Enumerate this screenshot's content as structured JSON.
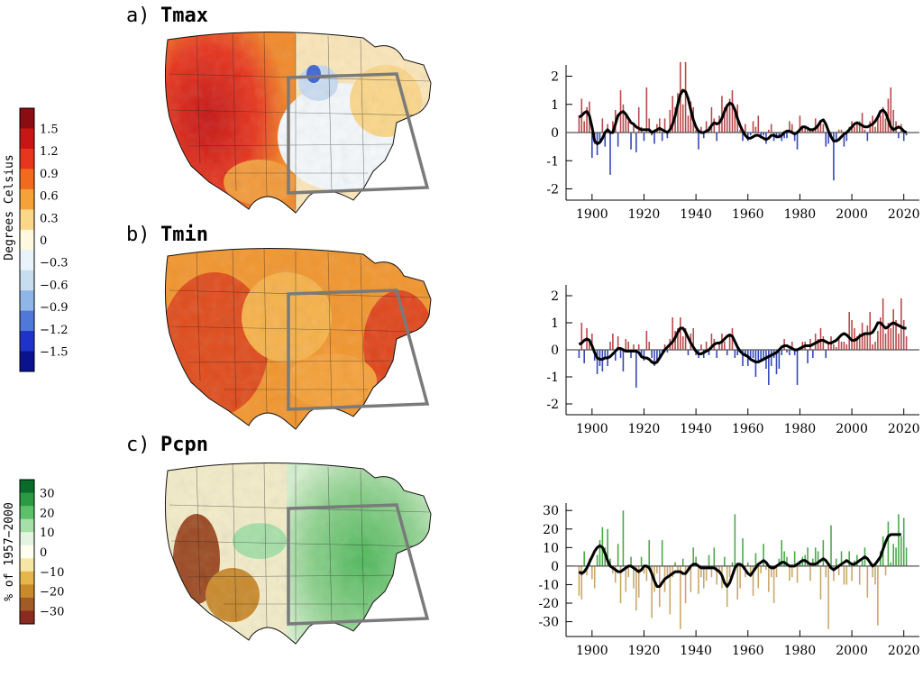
{
  "panels": [
    {
      "letter": "a)",
      "label": "Tmax"
    },
    {
      "letter": "b)",
      "label": "Tmin"
    },
    {
      "letter": "c)",
      "label": "Pcpn"
    }
  ],
  "temp_colorbar": {
    "label": "Degrees Celsius",
    "ticks": [
      "1.5",
      "1.2",
      "0.9",
      "0.6",
      "0.3",
      "0",
      "−0.3",
      "−0.6",
      "−0.9",
      "−1.2",
      "−1.5"
    ],
    "colors": [
      "#8b0c12",
      "#c81616",
      "#e8361e",
      "#f26a1e",
      "#f6a23a",
      "#fbd78a",
      "#fff8e0",
      "#eaf3fa",
      "#c7def0",
      "#8fb6e6",
      "#4f78d8",
      "#1f33c8",
      "#0a1290"
    ]
  },
  "pcpn_colorbar": {
    "label": "% of 1957−2000",
    "ticks": [
      "30",
      "20",
      "10",
      "0",
      "−10",
      "−20",
      "−30"
    ],
    "colors": [
      "#0a6b2a",
      "#2b9a44",
      "#5cc06a",
      "#a6dfa8",
      "#e3f5e0",
      "#fffef0",
      "#f6e6a6",
      "#e6b64a",
      "#c98a2c",
      "#a25a26",
      "#8a2b1f"
    ]
  },
  "chart_data": [
    {
      "type": "bar",
      "title": "Tmax",
      "x": [
        1895,
        1896,
        1897,
        1898,
        1899,
        1900,
        1901,
        1902,
        1903,
        1904,
        1905,
        1906,
        1907,
        1908,
        1909,
        1910,
        1911,
        1912,
        1913,
        1914,
        1915,
        1916,
        1917,
        1918,
        1919,
        1920,
        1921,
        1922,
        1923,
        1924,
        1925,
        1926,
        1927,
        1928,
        1929,
        1930,
        1931,
        1932,
        1933,
        1934,
        1935,
        1936,
        1937,
        1938,
        1939,
        1940,
        1941,
        1942,
        1943,
        1944,
        1945,
        1946,
        1947,
        1948,
        1949,
        1950,
        1951,
        1952,
        1953,
        1954,
        1955,
        1956,
        1957,
        1958,
        1959,
        1960,
        1961,
        1962,
        1963,
        1964,
        1965,
        1966,
        1967,
        1968,
        1969,
        1970,
        1971,
        1972,
        1973,
        1974,
        1975,
        1976,
        1977,
        1978,
        1979,
        1980,
        1981,
        1982,
        1983,
        1984,
        1985,
        1986,
        1987,
        1988,
        1989,
        1990,
        1991,
        1992,
        1993,
        1994,
        1995,
        1996,
        1997,
        1998,
        1999,
        2000,
        2001,
        2002,
        2003,
        2004,
        2005,
        2006,
        2007,
        2008,
        2009,
        2010,
        2011,
        2012,
        2013,
        2014,
        2015,
        2016,
        2017,
        2018,
        2019,
        2020,
        2021
      ],
      "values": [
        0.6,
        1.2,
        0.4,
        0.9,
        1.1,
        -0.9,
        -0.4,
        -0.8,
        -0.3,
        0.5,
        -0.5,
        0.3,
        -1.5,
        0.4,
        0.8,
        -0.5,
        1.5,
        1.0,
        0.6,
        0.4,
        -0.6,
        0.3,
        -0.7,
        0.9,
        0.2,
        -0.3,
        1.6,
        0.5,
        -0.1,
        -0.4,
        0.3,
        0.5,
        -0.3,
        0.5,
        -0.2,
        0.8,
        1.3,
        0.9,
        1.4,
        2.5,
        1.0,
        2.5,
        0.6,
        1.1,
        0.9,
        0.1,
        -0.6,
        0.2,
        -0.2,
        0.4,
        0.2,
        0.9,
        0.5,
        -0.3,
        0.6,
        1.3,
        0.9,
        1.0,
        1.2,
        1.5,
        0.8,
        1.0,
        0.1,
        -0.3,
        0.3,
        -0.3,
        -0.1,
        0.4,
        0.2,
        0.6,
        -0.2,
        -0.1,
        -0.4,
        0.1,
        0.3,
        -0.3,
        -0.2,
        -0.1,
        -0.3,
        -0.2,
        -0.2,
        0.4,
        0.3,
        -0.3,
        -0.6,
        0.6,
        0.2,
        0.2,
        0.2,
        0.1,
        0.1,
        0.5,
        0.2,
        0.4,
        0.3,
        -0.5,
        -0.4,
        -0.2,
        -1.7,
        -0.3,
        0.1,
        0.1,
        -0.5,
        -0.3,
        0.2,
        0.4,
        0.2,
        0.3,
        0.4,
        0.7,
        0.1,
        -0.3,
        0.4,
        0.6,
        0.2,
        0.5,
        0.6,
        0.9,
        0.5,
        1.2,
        1.6,
        0.8,
        0.4,
        -0.2,
        0.3,
        -0.3,
        -0.1
      ],
      "smooth": [
        0.55,
        0.6,
        0.7,
        0.75,
        0.6,
        0.2,
        -0.3,
        -0.4,
        -0.35,
        -0.2,
        0.0,
        0.1,
        0.0,
        0.0,
        0.3,
        0.6,
        0.7,
        0.75,
        0.65,
        0.5,
        0.35,
        0.3,
        0.2,
        0.15,
        0.1,
        0.1,
        0.1,
        0.1,
        0.0,
        0.05,
        0.1,
        0.15,
        0.1,
        0.05,
        0.0,
        0.1,
        0.3,
        0.6,
        1.0,
        1.35,
        1.5,
        1.45,
        1.2,
        0.8,
        0.45,
        0.2,
        0.05,
        0.0,
        0.0,
        0.05,
        0.1,
        0.25,
        0.35,
        0.3,
        0.35,
        0.5,
        0.75,
        0.95,
        1.05,
        1.0,
        0.8,
        0.5,
        0.25,
        0.05,
        -0.1,
        -0.2,
        -0.2,
        -0.15,
        -0.1,
        -0.1,
        -0.15,
        -0.2,
        -0.25,
        -0.2,
        -0.1,
        -0.1,
        -0.15,
        -0.15,
        -0.1,
        0.0,
        0.05,
        0.05,
        0.0,
        -0.05,
        0.0,
        0.1,
        0.2,
        0.2,
        0.15,
        0.1,
        0.1,
        0.15,
        0.25,
        0.4,
        0.45,
        0.3,
        0.05,
        -0.15,
        -0.3,
        -0.3,
        -0.25,
        -0.15,
        -0.05,
        0.0,
        0.1,
        0.2,
        0.3,
        0.35,
        0.3,
        0.25,
        0.2,
        0.2,
        0.25,
        0.3,
        0.4,
        0.55,
        0.75,
        0.8,
        0.7,
        0.45,
        0.2,
        0.1,
        0.15,
        0.2,
        0.15,
        0.05,
        0.0
      ],
      "ylim": [
        -2.4,
        2.4
      ],
      "yticks": [
        2,
        1,
        0,
        -1,
        -2
      ],
      "xticks": [
        1900,
        1920,
        1940,
        1960,
        1980,
        2000,
        2020
      ],
      "pos_color": "#b8484a",
      "neg_color": "#3447b8"
    },
    {
      "type": "bar",
      "title": "Tmin",
      "x": [
        1895,
        1896,
        1897,
        1898,
        1899,
        1900,
        1901,
        1902,
        1903,
        1904,
        1905,
        1906,
        1907,
        1908,
        1909,
        1910,
        1911,
        1912,
        1913,
        1914,
        1915,
        1916,
        1917,
        1918,
        1919,
        1920,
        1921,
        1922,
        1923,
        1924,
        1925,
        1926,
        1927,
        1928,
        1929,
        1930,
        1931,
        1932,
        1933,
        1934,
        1935,
        1936,
        1937,
        1938,
        1939,
        1940,
        1941,
        1942,
        1943,
        1944,
        1945,
        1946,
        1947,
        1948,
        1949,
        1950,
        1951,
        1952,
        1953,
        1954,
        1955,
        1956,
        1957,
        1958,
        1959,
        1960,
        1961,
        1962,
        1963,
        1964,
        1965,
        1966,
        1967,
        1968,
        1969,
        1970,
        1971,
        1972,
        1973,
        1974,
        1975,
        1976,
        1977,
        1978,
        1979,
        1980,
        1981,
        1982,
        1983,
        1984,
        1985,
        1986,
        1987,
        1988,
        1989,
        1990,
        1991,
        1992,
        1993,
        1994,
        1995,
        1996,
        1997,
        1998,
        1999,
        2000,
        2001,
        2002,
        2003,
        2004,
        2005,
        2006,
        2007,
        2008,
        2009,
        2010,
        2011,
        2012,
        2013,
        2014,
        2015,
        2016,
        2017,
        2018,
        2019,
        2020,
        2021
      ],
      "values": [
        -0.3,
        1.0,
        -0.5,
        0.8,
        0.4,
        0.6,
        -0.4,
        -0.9,
        -0.6,
        -0.8,
        -0.3,
        -0.6,
        0.3,
        0.6,
        -0.4,
        0.5,
        -0.3,
        -0.8,
        0.4,
        0.3,
        -0.3,
        0.2,
        -1.4,
        0.2,
        -0.3,
        -0.4,
        0.7,
        0.3,
        -0.3,
        -0.6,
        -0.5,
        -0.3,
        -0.2,
        0.2,
        -0.1,
        0.4,
        1.2,
        0.7,
        0.8,
        1.2,
        0.5,
        0.8,
        -0.2,
        0.6,
        0.8,
        -0.2,
        -0.3,
        0.2,
        -0.3,
        0.3,
        -0.2,
        0.6,
        0.4,
        -0.3,
        0.3,
        0.6,
        0.3,
        -0.2,
        0.6,
        0.8,
        -0.3,
        -0.2,
        -0.1,
        -0.6,
        -0.2,
        -0.6,
        -0.4,
        -0.3,
        -1.0,
        -0.5,
        -0.4,
        -0.4,
        -0.7,
        -1.3,
        -0.6,
        -0.3,
        -0.9,
        -0.7,
        -0.2,
        0.4,
        -0.1,
        -0.2,
        0.3,
        -0.2,
        -1.3,
        0.1,
        0.3,
        0.3,
        -0.5,
        0.4,
        -0.3,
        0.6,
        0.4,
        0.8,
        0.5,
        -0.3,
        0.3,
        0.5,
        0.2,
        0.1,
        0.4,
        0.3,
        0.3,
        0.2,
        1.4,
        1.1,
        0.8,
        0.5,
        0.6,
        1.0,
        0.6,
        0.9,
        1.4,
        0.2,
        0.3,
        0.7,
        1.2,
        1.9,
        0.6,
        1.0,
        0.8,
        1.5,
        1.1,
        0.6,
        1.9,
        1.1,
        0.5
      ],
      "smooth": [
        0.2,
        0.25,
        0.35,
        0.4,
        0.35,
        0.15,
        -0.1,
        -0.3,
        -0.35,
        -0.35,
        -0.3,
        -0.3,
        -0.25,
        -0.15,
        -0.05,
        0.05,
        0.05,
        0.0,
        -0.05,
        -0.05,
        -0.05,
        -0.05,
        -0.05,
        -0.1,
        -0.25,
        -0.3,
        -0.3,
        -0.35,
        -0.45,
        -0.5,
        -0.45,
        -0.3,
        -0.15,
        0.0,
        0.1,
        0.2,
        0.3,
        0.45,
        0.65,
        0.8,
        0.8,
        0.65,
        0.45,
        0.25,
        0.1,
        -0.05,
        -0.15,
        -0.15,
        -0.1,
        -0.05,
        0.0,
        0.1,
        0.2,
        0.25,
        0.25,
        0.3,
        0.4,
        0.5,
        0.55,
        0.5,
        0.3,
        0.1,
        -0.05,
        -0.15,
        -0.2,
        -0.25,
        -0.35,
        -0.4,
        -0.45,
        -0.45,
        -0.4,
        -0.35,
        -0.3,
        -0.25,
        -0.2,
        -0.15,
        -0.1,
        0.0,
        0.1,
        0.15,
        0.15,
        0.1,
        0.05,
        0.0,
        0.0,
        0.05,
        0.1,
        0.15,
        0.15,
        0.15,
        0.2,
        0.25,
        0.3,
        0.35,
        0.35,
        0.3,
        0.25,
        0.25,
        0.3,
        0.35,
        0.45,
        0.55,
        0.6,
        0.55,
        0.45,
        0.35,
        0.35,
        0.4,
        0.5,
        0.55,
        0.6,
        0.6,
        0.6,
        0.65,
        0.8,
        1.0,
        1.0,
        0.9,
        0.8,
        0.85,
        0.95,
        1.0,
        0.95,
        0.9,
        0.85,
        0.8,
        0.8
      ],
      "ylim": [
        -2.4,
        2.4
      ],
      "yticks": [
        2,
        1,
        0,
        -1,
        -2
      ],
      "xticks": [
        1900,
        1920,
        1940,
        1960,
        1980,
        2000,
        2020
      ],
      "pos_color": "#b8484a",
      "neg_color": "#3447b8"
    },
    {
      "type": "bar",
      "title": "Pcpn",
      "x": [
        1895,
        1896,
        1897,
        1898,
        1899,
        1900,
        1901,
        1902,
        1903,
        1904,
        1905,
        1906,
        1907,
        1908,
        1909,
        1910,
        1911,
        1912,
        1913,
        1914,
        1915,
        1916,
        1917,
        1918,
        1919,
        1920,
        1921,
        1922,
        1923,
        1924,
        1925,
        1926,
        1927,
        1928,
        1929,
        1930,
        1931,
        1932,
        1933,
        1934,
        1935,
        1936,
        1937,
        1938,
        1939,
        1940,
        1941,
        1942,
        1943,
        1944,
        1945,
        1946,
        1947,
        1948,
        1949,
        1950,
        1951,
        1952,
        1953,
        1954,
        1955,
        1956,
        1957,
        1958,
        1959,
        1960,
        1961,
        1962,
        1963,
        1964,
        1965,
        1966,
        1967,
        1968,
        1969,
        1970,
        1971,
        1972,
        1973,
        1974,
        1975,
        1976,
        1977,
        1978,
        1979,
        1980,
        1981,
        1982,
        1983,
        1984,
        1985,
        1986,
        1987,
        1988,
        1989,
        1990,
        1991,
        1992,
        1993,
        1994,
        1995,
        1996,
        1997,
        1998,
        1999,
        2000,
        2001,
        2002,
        2003,
        2004,
        2005,
        2006,
        2007,
        2008,
        2009,
        2010,
        2011,
        2012,
        2013,
        2014,
        2015,
        2016,
        2017,
        2018,
        2019,
        2020,
        2021
      ],
      "values": [
        -16,
        -18,
        8,
        -5,
        4,
        -7,
        -12,
        6,
        14,
        21,
        10,
        20,
        4,
        -4,
        -9,
        12,
        -20,
        30,
        -14,
        -6,
        5,
        -12,
        -24,
        -17,
        5,
        -4,
        -8,
        14,
        -28,
        -14,
        -4,
        -22,
        14,
        -14,
        -6,
        -26,
        -6,
        2,
        -4,
        -34,
        4,
        -20,
        -2,
        -14,
        10,
        5,
        -15,
        -6,
        -12,
        -8,
        6,
        -6,
        10,
        -10,
        -4,
        -12,
        5,
        -22,
        -6,
        2,
        28,
        -18,
        -12,
        15,
        -6,
        2,
        -6,
        -16,
        7,
        -12,
        -4,
        12,
        -2,
        -14,
        -6,
        -20,
        -6,
        4,
        14,
        8,
        5,
        -8,
        -6,
        8,
        -9,
        3,
        5,
        6,
        10,
        -8,
        4,
        10,
        8,
        -18,
        14,
        -6,
        -34,
        22,
        -8,
        4,
        -5,
        8,
        -10,
        -10,
        8,
        -8,
        3,
        6,
        -10,
        3,
        10,
        -17,
        2,
        -6,
        -10,
        -32,
        8,
        16,
        -5,
        24,
        2,
        12,
        10,
        28,
        16,
        26,
        10
      ],
      "smooth": [
        -3,
        -4,
        -3,
        -1,
        2,
        5,
        8,
        10,
        11,
        10,
        7,
        3,
        0,
        -1,
        -2,
        -3,
        -3,
        -2,
        -1,
        0,
        0,
        -1,
        -2,
        -3,
        -2,
        0,
        0,
        -1,
        -4,
        -8,
        -11,
        -11,
        -9,
        -7,
        -6,
        -5,
        -4,
        -3,
        -3,
        -3,
        -4,
        -4,
        -2,
        0,
        1,
        1,
        0,
        -1,
        -1,
        -1,
        -1,
        -1,
        -1,
        -2,
        -3,
        -5,
        -9,
        -11,
        -9,
        -5,
        -1,
        1,
        1,
        0,
        -2,
        -4,
        -5,
        -3,
        -1,
        1,
        2,
        3,
        2,
        0,
        -1,
        -1,
        0,
        1,
        2,
        2,
        1,
        0,
        0,
        0,
        1,
        2,
        3,
        3,
        2,
        1,
        1,
        1,
        2,
        3,
        4,
        3,
        1,
        -1,
        -2,
        -1,
        0,
        1,
        2,
        3,
        2,
        1,
        1,
        2,
        3,
        4,
        5,
        4,
        2,
        0,
        1,
        3,
        5,
        9,
        13,
        16,
        17,
        17,
        17,
        17,
        17
      ],
      "ylim": [
        -38,
        34
      ],
      "yticks": [
        30,
        20,
        10,
        0,
        -10,
        -20,
        -30
      ],
      "xticks": [
        1900,
        1920,
        1940,
        1960,
        1980,
        2000,
        2020
      ],
      "pos_color": "#4aa84a",
      "neg_color": "#c8a86a"
    }
  ]
}
